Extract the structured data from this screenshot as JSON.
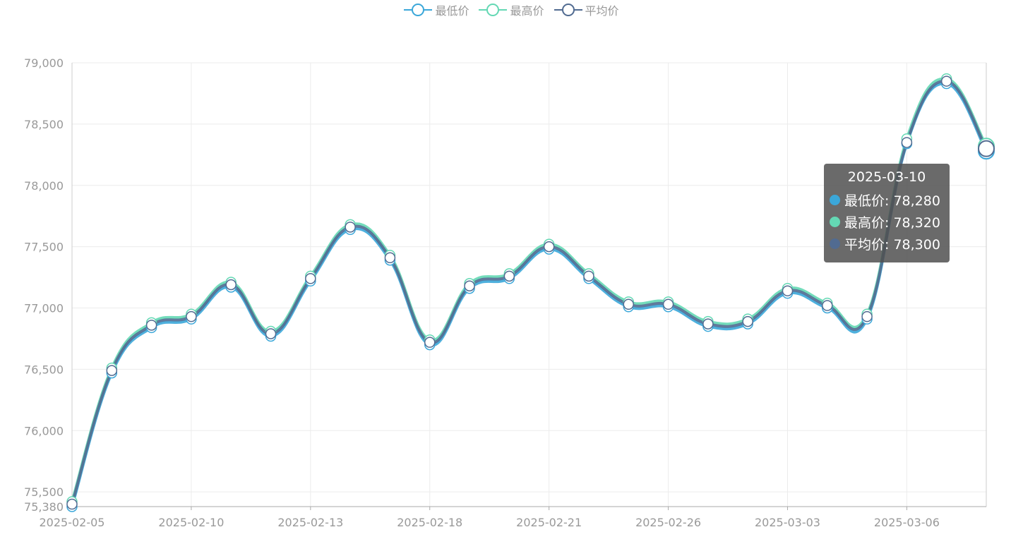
{
  "chart_data": {
    "type": "line",
    "categories": [
      "2025-02-05",
      "2025-02-06",
      "2025-02-07",
      "2025-02-10",
      "2025-02-11",
      "2025-02-12",
      "2025-02-13",
      "2025-02-14",
      "2025-02-17",
      "2025-02-18",
      "2025-02-19",
      "2025-02-20",
      "2025-02-21",
      "2025-02-24",
      "2025-02-25",
      "2025-02-26",
      "2025-02-27",
      "2025-02-28",
      "2025-03-03",
      "2025-03-04",
      "2025-03-05",
      "2025-03-06",
      "2025-03-07",
      "2025-03-10"
    ],
    "x_tick_labels": [
      "2025-02-05",
      "2025-02-10",
      "2025-02-13",
      "2025-02-18",
      "2025-02-21",
      "2025-02-26",
      "2025-03-03",
      "2025-03-06"
    ],
    "y_ticks": [
      75380,
      75500,
      76000,
      76500,
      77000,
      77500,
      78000,
      78500,
      79000
    ],
    "ylim": [
      75380,
      79000
    ],
    "series": [
      {
        "name": "最低价",
        "color": "#3ba7d9",
        "values": [
          75380,
          76470,
          76840,
          76910,
          77170,
          76770,
          77220,
          77640,
          77390,
          76700,
          77160,
          77240,
          77480,
          77240,
          77010,
          77010,
          76850,
          76870,
          77120,
          77000,
          76910,
          78340,
          78830,
          78280
        ]
      },
      {
        "name": "最高价",
        "color": "#64d8b4",
        "values": [
          75420,
          76510,
          76880,
          76950,
          77210,
          76810,
          77260,
          77680,
          77430,
          76740,
          77200,
          77280,
          77520,
          77280,
          77050,
          77050,
          76890,
          76910,
          77160,
          77040,
          76950,
          78380,
          78870,
          78320
        ]
      },
      {
        "name": "平均价",
        "color": "#516b91",
        "values": [
          75400,
          76490,
          76860,
          76930,
          77190,
          76790,
          77240,
          77660,
          77410,
          76720,
          77180,
          77260,
          77500,
          77260,
          77030,
          77030,
          76870,
          76890,
          77140,
          77020,
          76930,
          78350,
          78850,
          78300
        ]
      }
    ],
    "grid": true,
    "legend_position": "top-center"
  },
  "tooltip": {
    "title": "2025-03-10",
    "rows": [
      {
        "label": "最低价: 78,280",
        "color": "#3ba7d9"
      },
      {
        "label": "最高价: 78,320",
        "color": "#64d8b4"
      },
      {
        "label": "平均价: 78,300",
        "color": "#516b91"
      }
    ]
  }
}
